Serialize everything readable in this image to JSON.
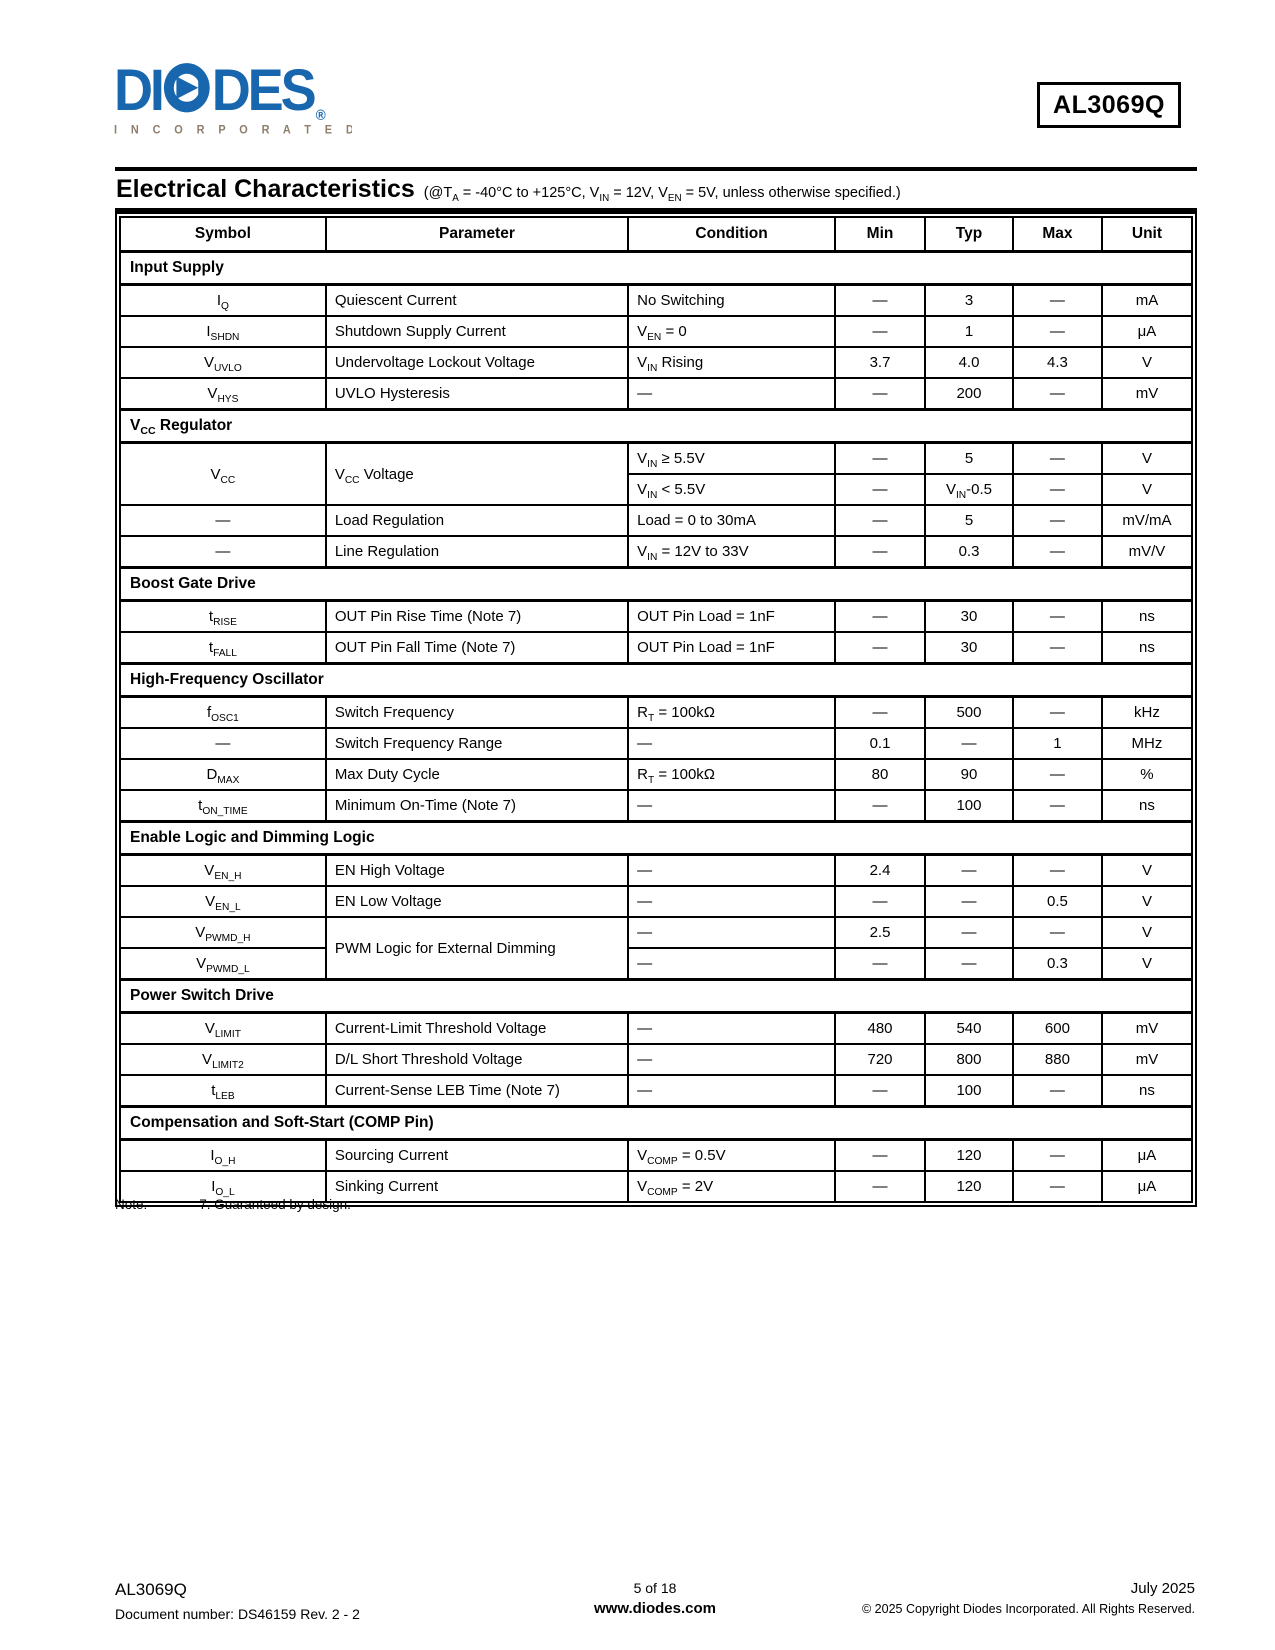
{
  "header": {
    "part_number": "AL3069Q",
    "logo": {
      "left": "DI",
      "right": "DES",
      "reg": "®",
      "incorporated": "I N C O R P O R A T E D"
    },
    "logo_colors": {
      "blue": "#1766AE",
      "tan": "#8E7F6B"
    }
  },
  "title": {
    "heading": "Electrical Characteristics",
    "condition": "(@T<sub>A</sub> = -40°C to +125°C, V<sub>IN</sub> = 12V, V<sub>EN</sub> = 5V, unless otherwise specified.)"
  },
  "table": {
    "columns": [
      "Symbol",
      "Parameter",
      "Condition",
      "Min",
      "Typ",
      "Max",
      "Unit"
    ],
    "sections": [
      {
        "title": "Input Supply",
        "rows": [
          {
            "sym": "I<sub>Q</sub>",
            "par": "Quiescent Current",
            "cond": "No Switching",
            "min": "—",
            "typ": "3",
            "max": "—",
            "unit": "mA"
          },
          {
            "sym": "I<sub>SHDN</sub>",
            "par": "Shutdown Supply Current",
            "cond": "V<sub>EN</sub> = 0",
            "min": "—",
            "typ": "1",
            "max": "—",
            "unit": "μA"
          },
          {
            "sym": "V<sub>UVLO</sub>",
            "par": "Undervoltage Lockout Voltage",
            "cond": "V<sub>IN</sub> Rising",
            "min": "3.7",
            "typ": "4.0",
            "max": "4.3",
            "unit": "V"
          },
          {
            "sym": "V<sub>HYS</sub>",
            "par": "UVLO Hysteresis",
            "cond": "—",
            "min": "—",
            "typ": "200",
            "max": "—",
            "unit": "mV"
          }
        ]
      },
      {
        "title": "V<sub>CC</sub> Regulator",
        "rows": [
          {
            "sym": "V<sub>CC</sub>",
            "sym_rs": 2,
            "par": "V<sub>CC</sub> Voltage",
            "par_rs": 2,
            "cond": "V<sub>IN</sub> ≥ 5.5V",
            "min": "—",
            "typ": "5",
            "max": "—",
            "unit": "V"
          },
          {
            "sym": null,
            "par": null,
            "cond": "V<sub>IN</sub> < 5.5V",
            "min": "—",
            "typ": "V<sub>IN</sub>-0.5",
            "max": "—",
            "unit": "V"
          },
          {
            "sym": "—",
            "par": "Load Regulation",
            "cond": "Load = 0 to 30mA",
            "min": "—",
            "typ": "5",
            "max": "—",
            "unit": "mV/mA"
          },
          {
            "sym": "—",
            "par": "Line Regulation",
            "cond": "V<sub>IN</sub> = 12V to 33V",
            "min": "—",
            "typ": "0.3",
            "max": "—",
            "unit": "mV/V"
          }
        ]
      },
      {
        "title": "Boost Gate Drive",
        "rows": [
          {
            "sym": "t<sub>RISE</sub>",
            "par": "OUT Pin Rise Time (Note 7)",
            "cond": "OUT Pin Load = 1nF",
            "min": "—",
            "typ": "30",
            "max": "—",
            "unit": "ns"
          },
          {
            "sym": "t<sub>FALL</sub>",
            "par": "OUT Pin Fall Time (Note 7)",
            "cond": "OUT Pin Load = 1nF",
            "min": "—",
            "typ": "30",
            "max": "—",
            "unit": "ns"
          }
        ]
      },
      {
        "title": "High-Frequency Oscillator",
        "rows": [
          {
            "sym": "f<sub>OSC1</sub>",
            "par": "Switch Frequency",
            "cond": "R<sub>T</sub> = 100kΩ",
            "min": "—",
            "typ": "500",
            "max": "—",
            "unit": "kHz"
          },
          {
            "sym": "—",
            "par": "Switch Frequency Range",
            "cond": "—",
            "min": "0.1",
            "typ": "—",
            "max": "1",
            "unit": "MHz"
          },
          {
            "sym": "D<sub>MAX</sub>",
            "par": "Max Duty Cycle",
            "cond": "R<sub>T</sub> = 100kΩ",
            "min": "80",
            "typ": "90",
            "max": "—",
            "unit": "%"
          },
          {
            "sym": "t<sub>ON_TIME</sub>",
            "par": "Minimum On-Time (Note 7)",
            "cond": "—",
            "min": "—",
            "typ": "100",
            "max": "—",
            "unit": "ns"
          }
        ]
      },
      {
        "title": "Enable Logic and Dimming Logic",
        "rows": [
          {
            "sym": "V<sub>EN_H</sub>",
            "par": "EN High Voltage",
            "cond": "—",
            "min": "2.4",
            "typ": "—",
            "max": "—",
            "unit": "V"
          },
          {
            "sym": "V<sub>EN_L</sub>",
            "par": "EN Low Voltage",
            "cond": "—",
            "min": "—",
            "typ": "—",
            "max": "0.5",
            "unit": "V"
          },
          {
            "sym": "V<sub>PWMD_H</sub>",
            "par": "PWM Logic for External Dimming",
            "par_rs": 2,
            "cond": "—",
            "min": "2.5",
            "typ": "—",
            "max": "—",
            "unit": "V"
          },
          {
            "sym": "V<sub>PWMD_L</sub>",
            "par": null,
            "cond": "—",
            "min": "—",
            "typ": "—",
            "max": "0.3",
            "unit": "V"
          }
        ]
      },
      {
        "title": "Power Switch Drive",
        "rows": [
          {
            "sym": "V<sub>LIMIT</sub>",
            "par": "Current-Limit Threshold Voltage",
            "cond": "—",
            "min": "480",
            "typ": "540",
            "max": "600",
            "unit": "mV"
          },
          {
            "sym": "V<sub>LIMIT2</sub>",
            "par": "D/L Short Threshold Voltage",
            "cond": "—",
            "min": "720",
            "typ": "800",
            "max": "880",
            "unit": "mV"
          },
          {
            "sym": "t<sub>LEB</sub>",
            "par": "Current-Sense LEB Time (Note 7)",
            "cond": "—",
            "min": "—",
            "typ": "100",
            "max": "—",
            "unit": "ns"
          }
        ]
      },
      {
        "title": "Compensation and Soft-Start (COMP Pin)",
        "rows": [
          {
            "sym": "I<sub>O_H</sub>",
            "par": "Sourcing Current",
            "cond": "V<sub>COMP</sub> = 0.5V",
            "min": "—",
            "typ": "120",
            "max": "—",
            "unit": "μA"
          },
          {
            "sym": "I<sub>O_L</sub>",
            "par": "Sinking Current",
            "cond": "V<sub>COMP</sub> = 2V",
            "min": "—",
            "typ": "120",
            "max": "—",
            "unit": "μA"
          }
        ]
      }
    ]
  },
  "note": {
    "label": "Note:",
    "text": "7. Guaranteed by design."
  },
  "footer": {
    "part": "AL3069Q",
    "doc_number": "Document number: DS46159 Rev. 2 - 2",
    "page": "5 of 18",
    "website": "www.diodes.com",
    "date": "July 2025",
    "copyright": "© 2025 Copyright Diodes Incorporated. All Rights Reserved."
  }
}
